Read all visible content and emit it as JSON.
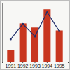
{
  "chart_data": {
    "type": "bar",
    "categories": [
      "1991",
      "1992",
      "1993",
      "1994",
      "1995"
    ],
    "series": [
      {
        "type": "bar",
        "color": "#c8361f",
        "values": [
          20,
          65,
          58,
          89,
          53
        ]
      },
      {
        "type": "line",
        "color": "#23306b",
        "marker": "circle",
        "values": [
          38,
          64,
          43,
          84,
          52
        ]
      }
    ],
    "ylim": [
      0,
      100
    ],
    "yticks": [],
    "grid": false,
    "tick_labels": "x"
  }
}
